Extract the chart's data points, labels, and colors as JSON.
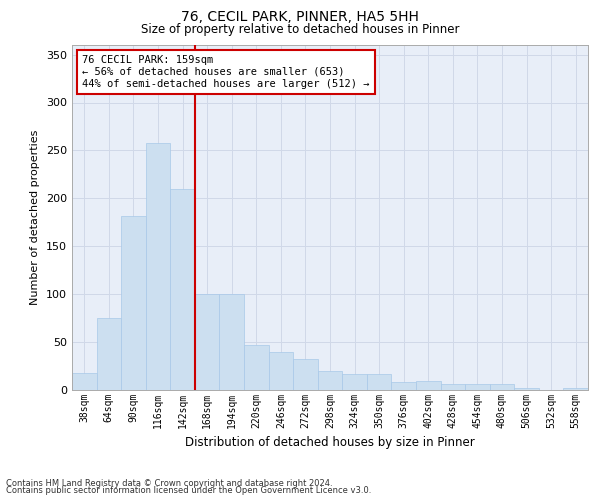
{
  "title1": "76, CECIL PARK, PINNER, HA5 5HH",
  "title2": "Size of property relative to detached houses in Pinner",
  "xlabel": "Distribution of detached houses by size in Pinner",
  "ylabel": "Number of detached properties",
  "bin_labels": [
    "38sqm",
    "64sqm",
    "90sqm",
    "116sqm",
    "142sqm",
    "168sqm",
    "194sqm",
    "220sqm",
    "246sqm",
    "272sqm",
    "298sqm",
    "324sqm",
    "350sqm",
    "376sqm",
    "402sqm",
    "428sqm",
    "454sqm",
    "480sqm",
    "506sqm",
    "532sqm",
    "558sqm"
  ],
  "bar_heights": [
    18,
    75,
    182,
    258,
    210,
    100,
    100,
    47,
    40,
    32,
    20,
    17,
    17,
    8,
    9,
    6,
    6,
    6,
    2,
    0,
    2
  ],
  "bar_color": "#ccdff0",
  "bar_edgecolor": "#a8c8e8",
  "grid_color": "#d0d8e8",
  "bg_color": "#e8eef8",
  "vline_color": "#cc0000",
  "annotation_text": "76 CECIL PARK: 159sqm\n← 56% of detached houses are smaller (653)\n44% of semi-detached houses are larger (512) →",
  "annotation_box_color": "#ffffff",
  "annotation_box_edgecolor": "#cc0000",
  "footnote1": "Contains HM Land Registry data © Crown copyright and database right 2024.",
  "footnote2": "Contains public sector information licensed under the Open Government Licence v3.0.",
  "ylim": [
    0,
    360
  ],
  "yticks": [
    0,
    50,
    100,
    150,
    200,
    250,
    300,
    350
  ]
}
